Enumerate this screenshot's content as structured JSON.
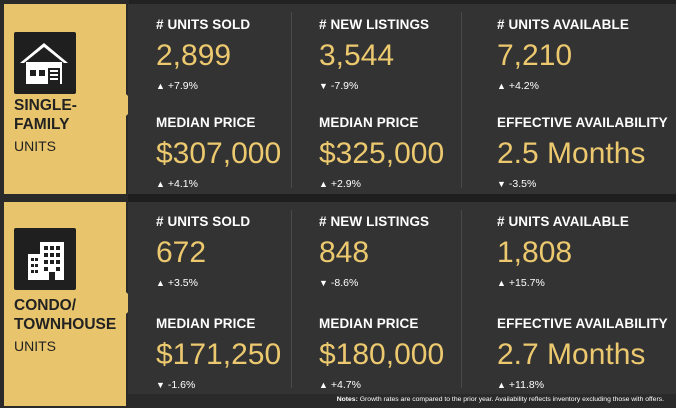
{
  "sections": [
    {
      "title_line1": "SINGLE-",
      "title_line2": "FAMILY",
      "subtitle": "UNITS",
      "icon": "house-icon",
      "metrics": [
        {
          "label": "# UNITS SOLD",
          "value": "2,899",
          "arrow": "▲",
          "change": "+7.9%"
        },
        {
          "label": "# NEW LISTINGS",
          "value": "3,544",
          "arrow": "▼",
          "change": "-7.9%"
        },
        {
          "label": "# UNITS AVAILABLE",
          "value": "7,210",
          "arrow": "▲",
          "change": "+4.2%"
        },
        {
          "label": "MEDIAN PRICE",
          "value": "$307,000",
          "arrow": "▲",
          "change": "+4.1%"
        },
        {
          "label": "MEDIAN PRICE",
          "value": "$325,000",
          "arrow": "▲",
          "change": "+2.9%"
        },
        {
          "label": "EFFECTIVE AVAILABILITY",
          "value": "2.5 Months",
          "arrow": "▼",
          "change": "-3.5%"
        }
      ]
    },
    {
      "title_line1": "CONDO/",
      "title_line2": "TOWNHOUSE",
      "subtitle": "UNITS",
      "icon": "building-icon",
      "metrics": [
        {
          "label": "# UNITS SOLD",
          "value": "672",
          "arrow": "▲",
          "change": "+3.5%"
        },
        {
          "label": "# NEW LISTINGS",
          "value": "848",
          "arrow": "▼",
          "change": "-8.6%"
        },
        {
          "label": "# UNITS AVAILABLE",
          "value": "1,808",
          "arrow": "▲",
          "change": "+15.7%"
        },
        {
          "label": "MEDIAN PRICE",
          "value": "$171,250",
          "arrow": "▼",
          "change": "-1.6%"
        },
        {
          "label": "MEDIAN PRICE",
          "value": "$180,000",
          "arrow": "▲",
          "change": "+4.7%"
        },
        {
          "label": "EFFECTIVE AVAILABILITY",
          "value": "2.7 Months",
          "arrow": "▲",
          "change": "+11.8%"
        }
      ]
    }
  ],
  "notes": {
    "prefix": "Notes:",
    "text": "Growth rates are compared to the prior year. Availability reflects inventory excluding those with offers."
  },
  "colors": {
    "accent": "#e8c56c",
    "value": "#ecc96f",
    "panel": "#333333"
  }
}
